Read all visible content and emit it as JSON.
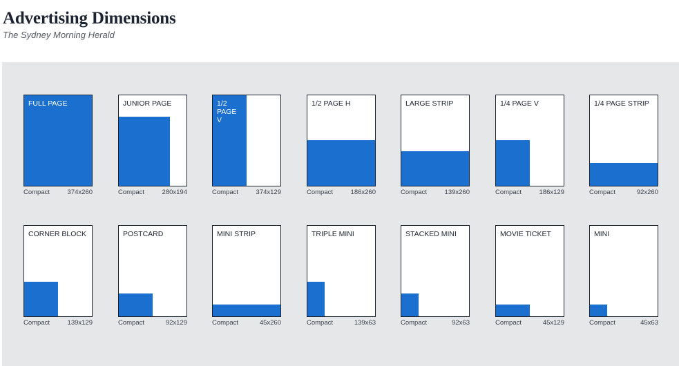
{
  "header": {
    "title": "Advertising Dimensions",
    "subtitle": "The Sydney Morning Herald"
  },
  "ads": [
    {
      "label": "FULL PAGE",
      "format": "Compact",
      "size": "374x260",
      "fill_width_fraction": 1.0,
      "fill_height_fraction": 1.0
    },
    {
      "label": "JUNIOR PAGE",
      "format": "Compact",
      "size": "280x194",
      "fill_width_fraction": 0.76,
      "fill_height_fraction": 0.76
    },
    {
      "label": "1/2\nPAGE\nV",
      "format": "Compact",
      "size": "374x129",
      "fill_width_fraction": 0.5,
      "fill_height_fraction": 1.0
    },
    {
      "label": "1/2 PAGE H",
      "format": "Compact",
      "size": "186x260",
      "fill_width_fraction": 1.0,
      "fill_height_fraction": 0.5
    },
    {
      "label": "LARGE STRIP",
      "format": "Compact",
      "size": "139x260",
      "fill_width_fraction": 1.0,
      "fill_height_fraction": 0.38
    },
    {
      "label": "1/4 PAGE V",
      "format": "Compact",
      "size": "186x129",
      "fill_width_fraction": 0.5,
      "fill_height_fraction": 0.5
    },
    {
      "label": "1/4 PAGE STRIP",
      "format": "Compact",
      "size": "92x260",
      "fill_width_fraction": 1.0,
      "fill_height_fraction": 0.25
    },
    {
      "label": "CORNER BLOCK",
      "format": "Compact",
      "size": "139x129",
      "fill_width_fraction": 0.5,
      "fill_height_fraction": 0.38
    },
    {
      "label": "POSTCARD",
      "format": "Compact",
      "size": "92x129",
      "fill_width_fraction": 0.5,
      "fill_height_fraction": 0.25
    },
    {
      "label": "MINI STRIP",
      "format": "Compact",
      "size": "45x260",
      "fill_width_fraction": 1.0,
      "fill_height_fraction": 0.13
    },
    {
      "label": "TRIPLE MINI",
      "format": "Compact",
      "size": "139x63",
      "fill_width_fraction": 0.25,
      "fill_height_fraction": 0.38
    },
    {
      "label": "STACKED MINI",
      "format": "Compact",
      "size": "92x63",
      "fill_width_fraction": 0.25,
      "fill_height_fraction": 0.25
    },
    {
      "label": "MOVIE TICKET",
      "format": "Compact",
      "size": "45x129",
      "fill_width_fraction": 0.5,
      "fill_height_fraction": 0.13
    },
    {
      "label": "MINI",
      "format": "Compact",
      "size": "45x63",
      "fill_width_fraction": 0.25,
      "fill_height_fraction": 0.13
    }
  ],
  "colors": {
    "ad_fill": "#1a6fcf",
    "panel_background": "#e6e7e9",
    "border": "#1c2431"
  }
}
